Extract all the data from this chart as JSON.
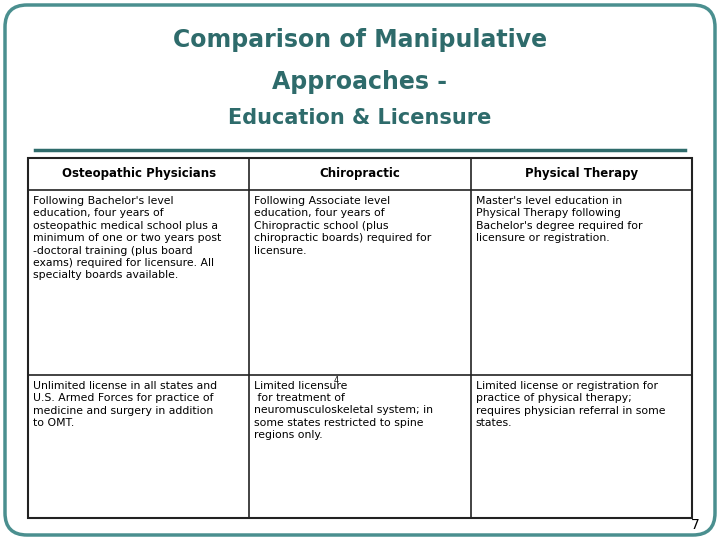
{
  "title_line1": "Comparison of Manipulative",
  "title_line2": "Approaches -",
  "title_line3": "Education & Licensure",
  "title_color": "#2e6b6b",
  "background_color": "#ffffff",
  "border_color": "#4a8f8f",
  "table_border_color": "#222222",
  "separator_color": "#2e6b6b",
  "headers": [
    "Osteopathic Physicians",
    "Chiropractic",
    "Physical Therapy"
  ],
  "header_font_size": 8.5,
  "body_font_size": 7.8,
  "row1_col1": "Following Bachelor's level\neducation, four years of\nosteopathic medical school plus a\nminimum of one or two years post\n-doctoral training (plus board\nexams) required for licensure. All\nspecialty boards available.",
  "row1_col2": "Following Associate level\neducation, four years of\nChiropractic school (plus\nchiropractic boards) required for\nlicensure.",
  "row1_col3": "Master's level education in\nPhysical Therapy following\nBachelor's degree required for\nlicensure or registration.",
  "row2_col1": "Unlimited license in all states and\nU.S. Armed Forces for practice of\nmedicine and surgery in addition\nto OMT.",
  "row2_col2_part1": "Limited licensure",
  "row2_col2_superscript": "4",
  "row2_col2_rest": " for treatment of\nneuromusculoskeletal system; in\nsome states restricted to spine\nregions only.",
  "row2_col3": "Limited license or registration for\npractice of physical therapy;\nrequires physician referral in some\nstates.",
  "page_number": "7",
  "figsize": [
    7.2,
    5.4
  ],
  "dpi": 100
}
